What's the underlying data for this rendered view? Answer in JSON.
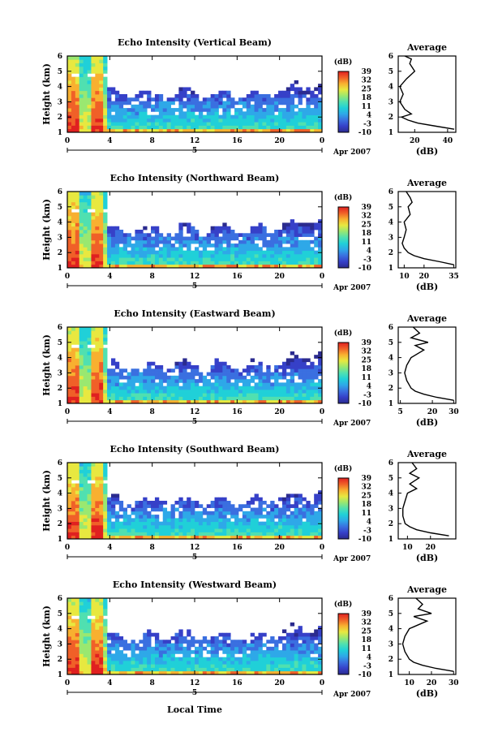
{
  "colorbar": {
    "unit_label": "(dB)",
    "tick_labels": [
      "39",
      "32",
      "25",
      "18",
      "11",
      "4",
      "-3",
      "-10"
    ],
    "min": -10,
    "max": 39,
    "colors": [
      "#2b2b8f",
      "#3640c8",
      "#3a6fe0",
      "#2ea8e8",
      "#20d0d8",
      "#50e0b0",
      "#9ae870",
      "#e8e840",
      "#f8b030",
      "#f06028",
      "#e02020"
    ]
  },
  "shared": {
    "time_axis_ticks": [
      0,
      4,
      8,
      12,
      16,
      20,
      0
    ],
    "day_label": "5",
    "date_label": "Apr 2007",
    "height_label": "Height (km)",
    "height_ticks": [
      1,
      2,
      3,
      4,
      5,
      6
    ],
    "xlabel": "Local Time",
    "average_title": "Average",
    "average_xlabel": "(dB)"
  },
  "chart_data": [
    {
      "type": "heatmap",
      "title": "Echo Intensity (Vertical Beam)",
      "x_range_hours": [
        0,
        24
      ],
      "ylim": [
        1,
        6
      ],
      "profile": {
        "type": "line",
        "xlim": [
          10,
          45
        ],
        "x_ticks": [
          20,
          40
        ],
        "y": [
          1.2,
          1.4,
          1.6,
          1.8,
          2.0,
          2.2,
          2.5,
          3.0,
          3.5,
          4.0,
          4.5,
          5.0,
          5.5,
          5.8,
          6.0
        ],
        "x": [
          44,
          33,
          22,
          16,
          12,
          18,
          14,
          11,
          13,
          11,
          15,
          20,
          17,
          18,
          14
        ]
      }
    },
    {
      "type": "heatmap",
      "title": "Echo Intensity (Northward Beam)",
      "x_range_hours": [
        0,
        24
      ],
      "ylim": [
        1,
        6
      ],
      "profile": {
        "type": "line",
        "xlim": [
          7,
          36
        ],
        "x_ticks": [
          10,
          20,
          35
        ],
        "y": [
          1.2,
          1.4,
          1.6,
          1.8,
          2.0,
          2.3,
          2.6,
          3.0,
          3.5,
          4.0,
          4.5,
          5.0,
          5.3,
          5.6,
          6.0
        ],
        "x": [
          35,
          28,
          20,
          15,
          12,
          10,
          9,
          10,
          11,
          10,
          13,
          12,
          14,
          13,
          11
        ]
      }
    },
    {
      "type": "heatmap",
      "title": "Echo Intensity (Eastward Beam)",
      "x_range_hours": [
        0,
        24
      ],
      "ylim": [
        1,
        6
      ],
      "profile": {
        "type": "line",
        "xlim": [
          4,
          31
        ],
        "x_ticks": [
          5,
          20,
          30
        ],
        "y": [
          1.2,
          1.4,
          1.6,
          1.8,
          2.0,
          2.5,
          3.0,
          3.5,
          4.0,
          4.5,
          4.8,
          5.0,
          5.3,
          5.6,
          6.0
        ],
        "x": [
          30,
          22,
          16,
          12,
          10,
          8,
          7,
          8,
          10,
          16,
          12,
          18,
          10,
          14,
          11
        ]
      }
    },
    {
      "type": "heatmap",
      "title": "Echo Intensity (Southward Beam)",
      "x_range_hours": [
        0,
        24
      ],
      "ylim": [
        1,
        6
      ],
      "profile": {
        "type": "line",
        "xlim": [
          6,
          31
        ],
        "x_ticks": [
          10,
          20
        ],
        "y": [
          1.2,
          1.4,
          1.6,
          1.8,
          2.0,
          2.5,
          3.0,
          3.5,
          4.0,
          4.3,
          4.6,
          5.0,
          5.3,
          5.6,
          6.0
        ],
        "x": [
          28,
          20,
          14,
          11,
          9,
          8,
          8,
          9,
          10,
          14,
          11,
          15,
          11,
          14,
          12
        ]
      }
    },
    {
      "type": "heatmap",
      "title": "Echo Intensity (Westward Beam)",
      "x_range_hours": [
        0,
        24
      ],
      "ylim": [
        1,
        6
      ],
      "profile": {
        "type": "line",
        "xlim": [
          5,
          31
        ],
        "x_ticks": [
          10,
          20,
          30
        ],
        "y": [
          1.2,
          1.4,
          1.6,
          1.8,
          2.0,
          2.5,
          3.0,
          3.5,
          4.0,
          4.5,
          4.8,
          5.0,
          5.3,
          5.6,
          6.0
        ],
        "x": [
          30,
          22,
          16,
          12,
          10,
          8,
          7,
          8,
          10,
          18,
          12,
          20,
          14,
          16,
          13
        ]
      }
    }
  ]
}
